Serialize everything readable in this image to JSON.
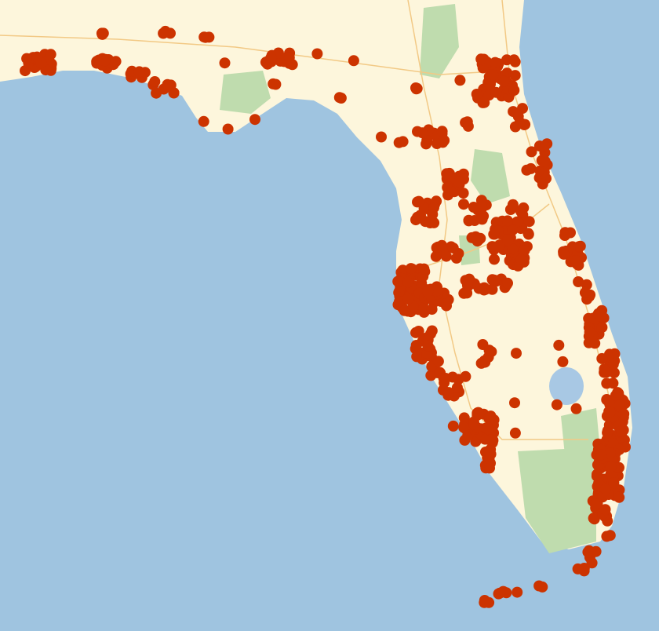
{
  "map": {
    "colors": {
      "water": "#9fc4e0",
      "land": "#fdf6dc",
      "park": "#bfdcae",
      "road": "#f2c985",
      "marker": "#cc3300",
      "lake": "#a8c8e4"
    },
    "marker_icon": "circle-marker"
  }
}
